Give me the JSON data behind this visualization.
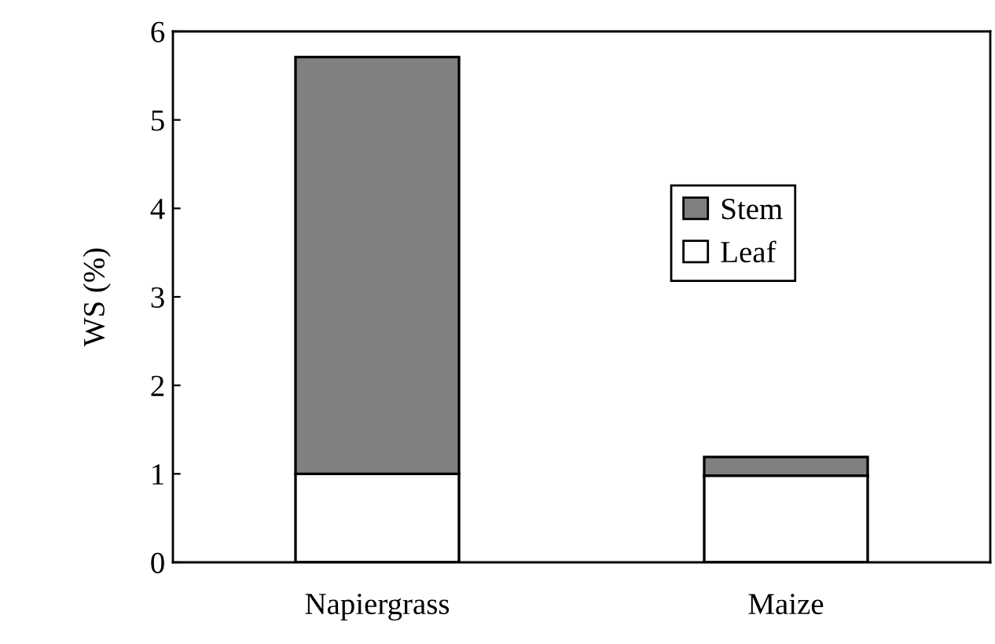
{
  "chart_data": {
    "type": "bar",
    "stacked": true,
    "ylabel": "WS (%)",
    "categories": [
      "Napiergrass",
      "Maize"
    ],
    "series": [
      {
        "name": "Leaf",
        "color": "#ffffff",
        "values": [
          1.0,
          0.98
        ]
      },
      {
        "name": "Stem",
        "color": "#808080",
        "values": [
          4.71,
          0.21
        ]
      }
    ],
    "ylim": [
      0,
      6
    ],
    "yticks": [
      0,
      1,
      2,
      3,
      4,
      5,
      6
    ],
    "grid": false,
    "legend": "right"
  }
}
